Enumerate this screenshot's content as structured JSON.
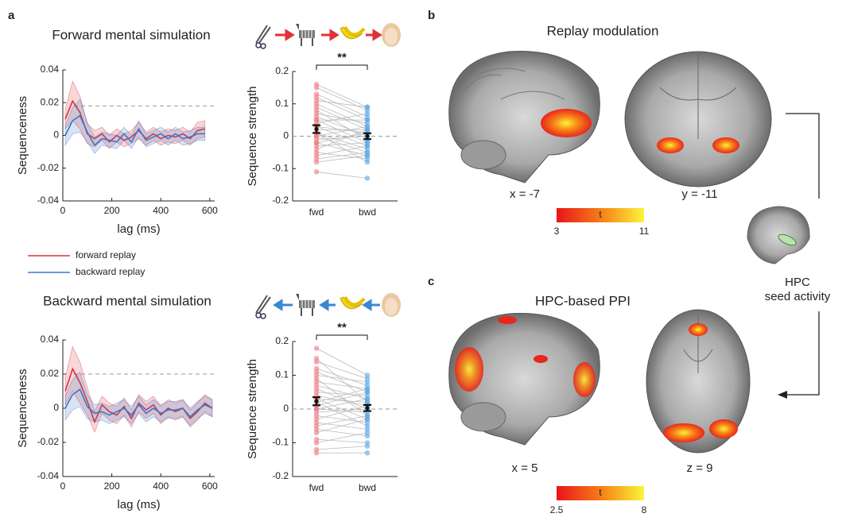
{
  "chart_data": [
    {
      "type": "line",
      "title": "Forward mental simulation",
      "x_label": "lag (ms)",
      "y_label": "Sequenceness",
      "x": [
        10,
        40,
        70,
        100,
        130,
        160,
        190,
        220,
        250,
        280,
        310,
        340,
        370,
        400,
        430,
        460,
        490,
        520,
        550,
        580
      ],
      "series": [
        {
          "name": "forward replay",
          "color": "#e0303a",
          "values": [
            0.01,
            0.021,
            0.014,
            0.001,
            -0.002,
            0.001,
            -0.004,
            0.0,
            -0.003,
            -0.001,
            0.003,
            -0.002,
            0.001,
            -0.002,
            0.0,
            -0.001,
            0.001,
            -0.002,
            0.003,
            0.004
          ],
          "errors": [
            0.006,
            0.012,
            0.01,
            0.006,
            0.005,
            0.004,
            0.004,
            0.004,
            0.004,
            0.004,
            0.005,
            0.004,
            0.004,
            0.004,
            0.004,
            0.004,
            0.004,
            0.004,
            0.005,
            0.005
          ]
        },
        {
          "name": "backward replay",
          "color": "#3a78c8",
          "values": [
            0.0,
            0.009,
            0.012,
            0.002,
            -0.006,
            -0.002,
            -0.003,
            -0.004,
            0.001,
            -0.004,
            0.004,
            -0.003,
            -0.001,
            0.001,
            -0.002,
            0.001,
            -0.002,
            -0.001,
            0.001,
            0.001
          ],
          "errors": [
            0.006,
            0.008,
            0.01,
            0.006,
            0.005,
            0.004,
            0.004,
            0.004,
            0.004,
            0.004,
            0.005,
            0.004,
            0.004,
            0.004,
            0.004,
            0.004,
            0.004,
            0.004,
            0.004,
            0.004
          ]
        }
      ],
      "threshold": 0.018,
      "xlim": [
        0,
        620
      ],
      "xticks": [
        0,
        200,
        400,
        600
      ],
      "ylim": [
        -0.04,
        0.04
      ],
      "yticks": [
        -0.04,
        -0.02,
        0,
        0.02,
        0.04
      ]
    },
    {
      "type": "strip",
      "y_label": "Sequence strength",
      "categories": [
        "fwd",
        "bwd"
      ],
      "colors": [
        "#ec7a82",
        "#5ea6e2"
      ],
      "points": [
        [
          0.16,
          0.15,
          0.13,
          0.12,
          0.11,
          0.1,
          0.09,
          0.08,
          0.07,
          0.06,
          0.05,
          0.05,
          0.04,
          0.03,
          0.03,
          0.02,
          0.01,
          0.0,
          0.0,
          -0.01,
          -0.02,
          -0.02,
          -0.03,
          -0.04,
          -0.05,
          -0.06,
          -0.07,
          -0.08,
          -0.11,
          0.01
        ],
        [
          0.09,
          0.08,
          0.06,
          0.05,
          0.09,
          0.03,
          0.02,
          -0.01,
          0.04,
          0.0,
          0.05,
          -0.02,
          0.07,
          -0.03,
          0.01,
          0.02,
          -0.04,
          0.03,
          -0.05,
          0.0,
          -0.06,
          0.01,
          -0.02,
          0.02,
          -0.07,
          -0.03,
          -0.05,
          -0.06,
          -0.13,
          -0.08
        ]
      ],
      "means": [
        0.022,
        0.0
      ],
      "errors": [
        0.012,
        0.009
      ],
      "annotation": "**",
      "ylim": [
        -0.2,
        0.2
      ],
      "yticks": [
        -0.2,
        -0.1,
        0,
        0.1,
        0.2
      ]
    },
    {
      "type": "line",
      "title": "Backward mental simulation",
      "x_label": "lag (ms)",
      "y_label": "Sequenceness",
      "x": [
        10,
        40,
        70,
        100,
        130,
        160,
        190,
        220,
        250,
        280,
        310,
        340,
        370,
        400,
        430,
        460,
        490,
        520,
        550,
        580,
        610
      ],
      "series": [
        {
          "color": "#e0303a",
          "values": [
            0.01,
            0.023,
            0.015,
            0.004,
            -0.008,
            0.002,
            -0.002,
            -0.004,
            0.001,
            -0.006,
            0.003,
            -0.001,
            0.002,
            -0.004,
            0.0,
            -0.002,
            0.0,
            -0.006,
            -0.002,
            0.003,
            0.0
          ],
          "errors": [
            0.008,
            0.013,
            0.012,
            0.008,
            0.006,
            0.005,
            0.005,
            0.005,
            0.005,
            0.005,
            0.005,
            0.005,
            0.005,
            0.005,
            0.005,
            0.005,
            0.005,
            0.005,
            0.005,
            0.005,
            0.005
          ]
        },
        {
          "color": "#3a78c8",
          "values": [
            0.0,
            0.008,
            0.011,
            0.001,
            -0.003,
            -0.002,
            -0.004,
            -0.002,
            0.0,
            -0.004,
            0.002,
            -0.003,
            0.0,
            -0.003,
            -0.001,
            -0.001,
            0.0,
            -0.005,
            -0.001,
            0.002,
            0.0
          ],
          "errors": [
            0.007,
            0.009,
            0.01,
            0.007,
            0.005,
            0.005,
            0.005,
            0.005,
            0.005,
            0.005,
            0.005,
            0.005,
            0.005,
            0.005,
            0.005,
            0.005,
            0.005,
            0.005,
            0.005,
            0.005,
            0.005
          ]
        }
      ],
      "threshold": 0.02,
      "xlim": [
        0,
        620
      ],
      "xticks": [
        0,
        200,
        400,
        600
      ],
      "ylim": [
        -0.04,
        0.04
      ],
      "yticks": [
        -0.04,
        -0.02,
        0,
        0.02,
        0.04
      ]
    },
    {
      "type": "strip",
      "y_label": "Sequence strength",
      "categories": [
        "fwd",
        "bwd"
      ],
      "colors": [
        "#ec7a82",
        "#5ea6e2"
      ],
      "points": [
        [
          0.18,
          0.15,
          0.14,
          0.12,
          0.11,
          0.1,
          0.09,
          0.08,
          0.07,
          0.06,
          0.05,
          0.04,
          0.03,
          0.03,
          0.02,
          0.01,
          0.0,
          0.0,
          -0.01,
          -0.02,
          -0.03,
          -0.04,
          -0.05,
          -0.06,
          -0.07,
          -0.09,
          -0.1,
          -0.12,
          -0.13,
          0.02
        ],
        [
          0.1,
          0.02,
          0.09,
          0.07,
          0.05,
          0.08,
          -0.02,
          0.06,
          0.03,
          0.0,
          0.04,
          0.01,
          -0.03,
          0.02,
          -0.05,
          0.05,
          -0.01,
          0.03,
          0.0,
          -0.04,
          0.01,
          -0.06,
          -0.02,
          -0.08,
          -0.03,
          -0.1,
          -0.07,
          -0.11,
          -0.13,
          0.06
        ]
      ],
      "means": [
        0.023,
        0.003
      ],
      "errors": [
        0.012,
        0.009
      ],
      "annotation": "**",
      "ylim": [
        -0.2,
        0.2
      ],
      "yticks": [
        -0.2,
        -0.1,
        0,
        0.1,
        0.2
      ]
    }
  ],
  "panel_labels": [
    "a",
    "b",
    "c"
  ],
  "brain_panels": [
    {
      "title": "Replay modulation",
      "views": [
        "x = -7",
        "y = -11"
      ],
      "colorbar": {
        "min": 3,
        "label": "t",
        "max": 11
      }
    },
    {
      "title": "HPC-based PPI",
      "views": [
        "x = 5",
        "z = 9"
      ],
      "colorbar": {
        "min": 2.5,
        "label": "t",
        "max": 8
      }
    }
  ],
  "seed": [
    "HPC",
    "seed activity"
  ]
}
